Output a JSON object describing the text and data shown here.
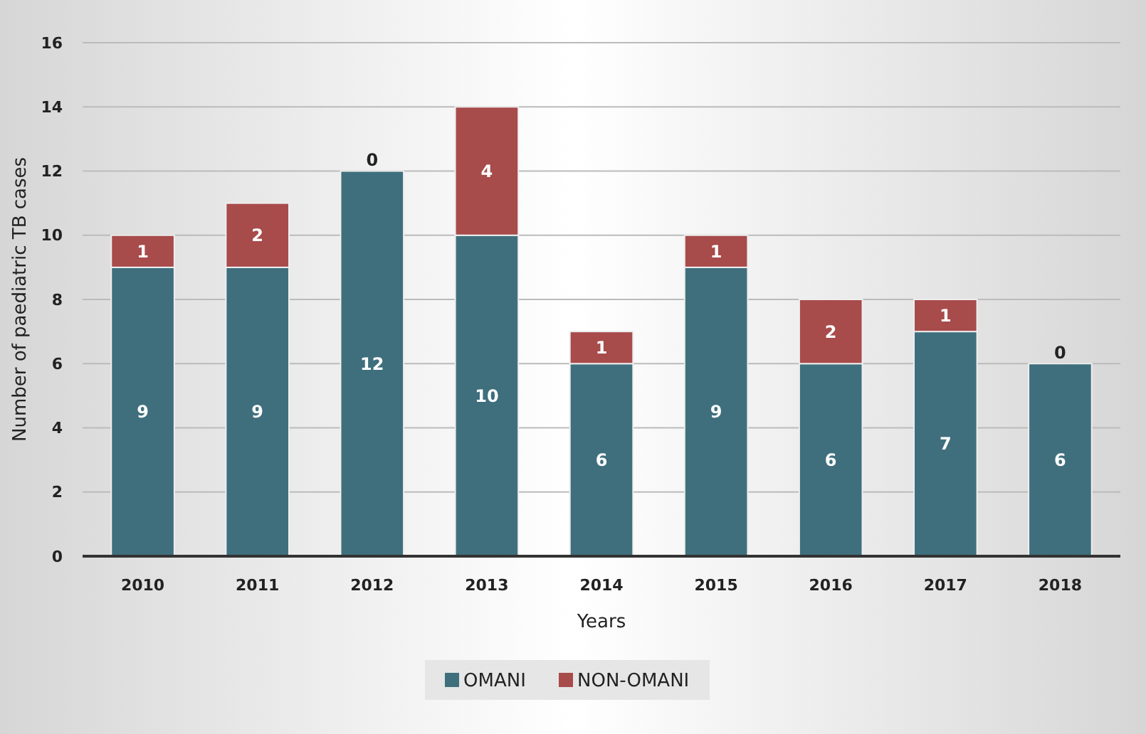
{
  "chart_data": {
    "type": "bar",
    "stacked": true,
    "xlabel": "Years",
    "ylabel": "Number of paediatric TB cases",
    "categories": [
      "2010",
      "2011",
      "2012",
      "2013",
      "2014",
      "2015",
      "2016",
      "2017",
      "2018"
    ],
    "series": [
      {
        "name": "OMANI",
        "color": "#3f6f7d",
        "values": [
          9,
          9,
          12,
          10,
          6,
          9,
          6,
          7,
          6
        ]
      },
      {
        "name": "NON-OMANI",
        "color": "#a84b4b",
        "values": [
          1,
          2,
          0,
          4,
          1,
          1,
          2,
          1,
          0
        ]
      }
    ],
    "ylim": [
      0,
      16
    ],
    "yticks": [
      0,
      2,
      4,
      6,
      8,
      10,
      12,
      14,
      16
    ],
    "grid": "y",
    "legend": "bottom",
    "data_labels": true
  }
}
